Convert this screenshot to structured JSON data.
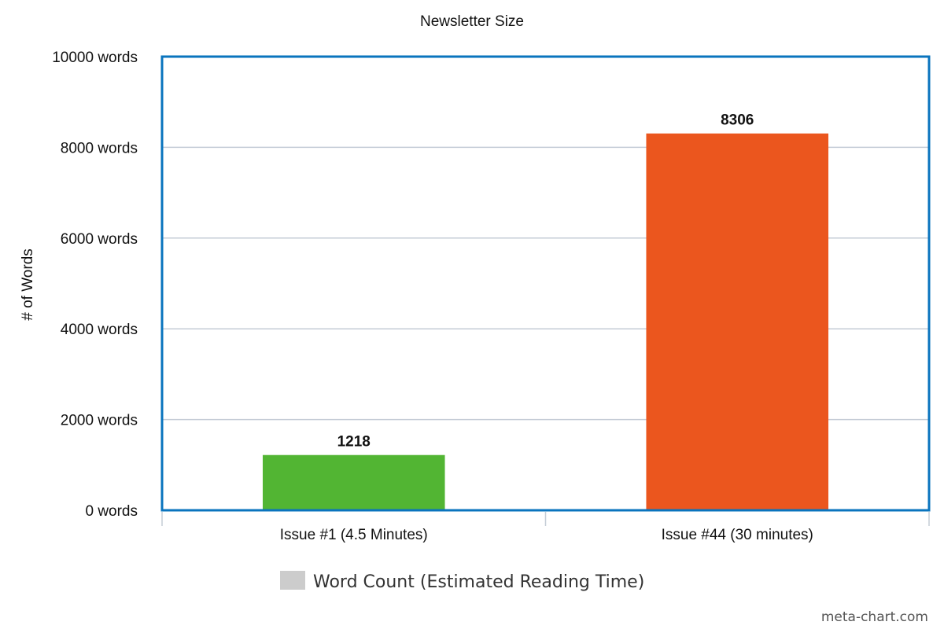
{
  "chart_data": {
    "type": "bar",
    "title": "Newsletter Size",
    "xlabel": "",
    "ylabel": "# of Words",
    "categories": [
      "Issue #1 (4.5 Minutes)",
      "Issue #44 (30 minutes)"
    ],
    "values": [
      1218,
      8306
    ],
    "data_labels": [
      "1218",
      "8306"
    ],
    "bar_colors": [
      "#52b533",
      "#eb561e"
    ],
    "ylim": [
      0,
      10000
    ],
    "yticks": [
      0,
      2000,
      4000,
      6000,
      8000,
      10000
    ],
    "ytick_labels": [
      "0 words",
      "2000 words",
      "4000 words",
      "6000 words",
      "8000 words",
      "10000 words"
    ],
    "grid": true,
    "legend": {
      "position": "bottom",
      "entries": [
        {
          "label": "Word Count (Estimated Reading Time)",
          "color": "#cccccc"
        }
      ]
    },
    "plot_border_color": "#0a74be",
    "grid_color": "#c4ccd6"
  },
  "credit": "meta-chart.com"
}
